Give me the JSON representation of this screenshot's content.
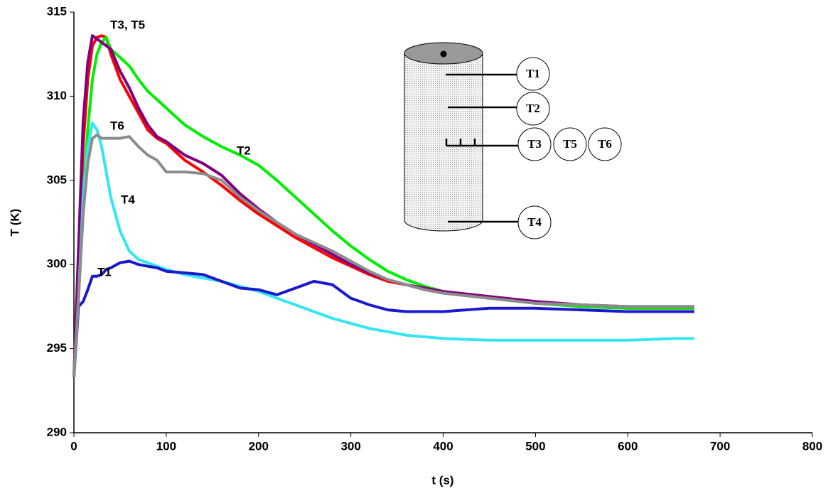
{
  "chart_data": {
    "type": "line",
    "x_label": "t (s)",
    "y_label": "T (K)",
    "xlim": [
      0,
      800
    ],
    "xticks": [
      0,
      100,
      200,
      300,
      400,
      500,
      600,
      700,
      800
    ],
    "ylim": [
      290,
      315
    ],
    "yticks": [
      290,
      295,
      300,
      305,
      310,
      315
    ],
    "grid": false,
    "x": [
      0,
      5,
      10,
      15,
      20,
      25,
      30,
      35,
      40,
      50,
      60,
      70,
      80,
      90,
      100,
      120,
      140,
      160,
      180,
      200,
      220,
      240,
      260,
      280,
      300,
      320,
      340,
      360,
      380,
      400,
      450,
      500,
      550,
      600,
      650,
      672
    ],
    "series": [
      {
        "name": "T3",
        "color": "#ff0000",
        "values": [
          293.3,
          300,
          307,
          311,
          313,
          313.5,
          313.6,
          313.5,
          312.5,
          311,
          310,
          309,
          308,
          307.5,
          307.2,
          306.2,
          305.5,
          304.7,
          303.8,
          303,
          302.3,
          301.6,
          301,
          300.4,
          299.9,
          299.4,
          299,
          298.8,
          298.5,
          298.3,
          298,
          297.7,
          297.5,
          297.4,
          297.4,
          297.4
        ]
      },
      {
        "name": "T2",
        "color": "#00ee00",
        "values": [
          293.3,
          298,
          304,
          308,
          311,
          312.5,
          313.2,
          313.5,
          312.8,
          312.3,
          311.8,
          311,
          310.3,
          309.8,
          309.3,
          308.3,
          307.6,
          307,
          306.5,
          305.9,
          305,
          304,
          303,
          302,
          301.1,
          300.3,
          299.6,
          299.1,
          298.7,
          298.4,
          298,
          297.7,
          297.5,
          297.4,
          297.4,
          297.4
        ]
      },
      {
        "name": "T5",
        "color": "#800080",
        "values": [
          293.3,
          301,
          308.5,
          312,
          313.6,
          313.4,
          313.2,
          313,
          312.8,
          311.5,
          310.5,
          309.3,
          308.3,
          307.6,
          307.3,
          306.5,
          306,
          305.3,
          304.2,
          303.3,
          302.5,
          301.8,
          301.2,
          300.6,
          300,
          299.5,
          299.1,
          298.8,
          298.6,
          298.4,
          298.1,
          297.8,
          297.6,
          297.5,
          297.5,
          297.5
        ]
      },
      {
        "name": "T4",
        "color": "#33e6f0",
        "values": [
          293.3,
          298,
          304,
          307,
          308.4,
          308,
          307,
          305.5,
          304,
          302,
          300.8,
          300.3,
          300.1,
          299.9,
          299.7,
          299.4,
          299.2,
          299,
          298.7,
          298.4,
          298,
          297.6,
          297.2,
          296.8,
          296.5,
          296.2,
          296,
          295.8,
          295.7,
          295.6,
          295.5,
          295.5,
          295.5,
          295.5,
          295.6,
          295.6
        ]
      },
      {
        "name": "T1",
        "color": "#1a1acc",
        "values": [
          293.3,
          297.5,
          297.8,
          298.5,
          299.3,
          299.3,
          299.4,
          299.7,
          299.8,
          300.1,
          300.2,
          300,
          299.9,
          299.8,
          299.6,
          299.5,
          299.4,
          299,
          298.6,
          298.5,
          298.2,
          298.6,
          299,
          298.8,
          298,
          297.6,
          297.3,
          297.2,
          297.2,
          297.2,
          297.4,
          297.4,
          297.3,
          297.2,
          297.2,
          297.2
        ]
      },
      {
        "name": "T6",
        "color": "#8c8c8c",
        "values": [
          293.3,
          298,
          303,
          306,
          307.5,
          307.7,
          307.5,
          307.5,
          307.5,
          307.5,
          307.6,
          307,
          306.5,
          306.2,
          305.5,
          305.5,
          305.4,
          305,
          304,
          303.2,
          302.5,
          301.8,
          301.3,
          300.8,
          300.2,
          299.6,
          299.1,
          298.8,
          298.5,
          298.3,
          298,
          297.7,
          297.6,
          297.5,
          297.5,
          297.5
        ]
      }
    ],
    "annotations": [
      "T3, T5",
      "T6",
      "T4",
      "T1",
      "T2"
    ],
    "inset_labels": [
      "T1",
      "T2",
      "T3",
      "T5",
      "T6",
      "T4"
    ]
  }
}
